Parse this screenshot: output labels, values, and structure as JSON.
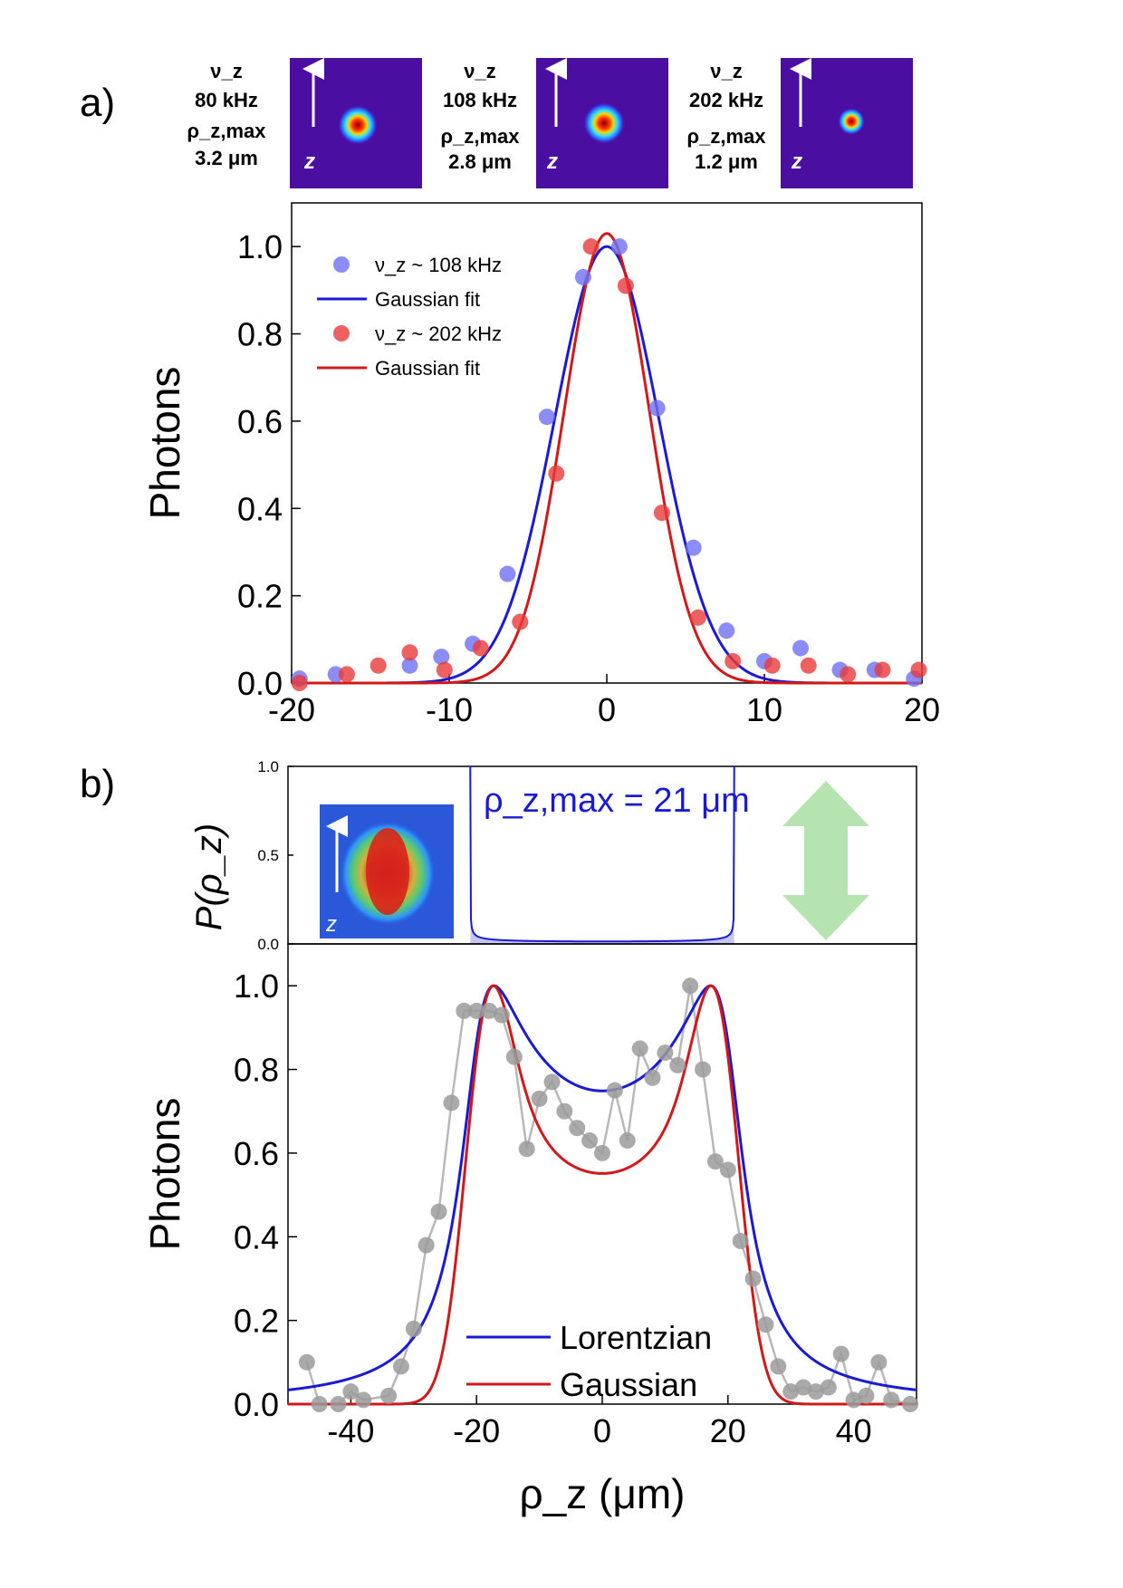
{
  "panel_a": {
    "label": "a)",
    "insets": [
      {
        "nu_label": "ν_z",
        "nu_value": "80 kHz",
        "rho_label": "ρ_z,max",
        "rho_value": "3.2 μm",
        "axis_letter": "z"
      },
      {
        "nu_label": "ν_z",
        "nu_value": "108 kHz",
        "rho_label": "ρ_z,max",
        "rho_value": "2.8 μm",
        "axis_letter": "z"
      },
      {
        "nu_label": "ν_z",
        "nu_value": "202 kHz",
        "rho_label": "ρ_z,max",
        "rho_value": "1.2 μm",
        "axis_letter": "z"
      }
    ]
  },
  "panel_b": {
    "label": "b)",
    "top_ylabel": "P(ρ_z)",
    "rho_annotation": "ρ_z,max = 21 μm",
    "inset_axis_letter": "z"
  },
  "colors": {
    "blue": "#1a1ad6",
    "red": "#d11919",
    "blue_marker": "#6f6ff2",
    "red_marker": "#ea3a3a",
    "gray_marker": "#9b9b9b",
    "gray_line": "#b8b8b8",
    "arrow_green": "#b6e4b0",
    "inset_bg": "#4a0fa0"
  },
  "chart_data": [
    {
      "id": "a",
      "type": "scatter",
      "xlabel": "",
      "ylabel": "Photons",
      "xlim": [
        -20,
        20
      ],
      "ylim": [
        0,
        1.1
      ],
      "xticks": [
        -20,
        -10,
        0,
        10,
        20
      ],
      "yticks": [
        0.0,
        0.2,
        0.4,
        0.6,
        0.8,
        1.0
      ],
      "legend_position": "top-left",
      "series": [
        {
          "name": "ν_z ~ 108 kHz",
          "kind": "points",
          "color": "blue",
          "x": [
            -19.5,
            -17.2,
            -12.5,
            -10.5,
            -8.5,
            -6.3,
            -3.8,
            -1.5,
            0.8,
            3.2,
            5.5,
            7.6,
            10.0,
            12.3,
            14.8,
            17.0,
            19.5
          ],
          "y": [
            0.01,
            0.02,
            0.04,
            0.06,
            0.09,
            0.25,
            0.61,
            0.93,
            1.0,
            0.63,
            0.31,
            0.12,
            0.05,
            0.08,
            0.03,
            0.03,
            0.01
          ]
        },
        {
          "name": "Gaussian fit",
          "kind": "fit",
          "color": "blue",
          "amplitude": 1.0,
          "center": 0.0,
          "sigma": 3.3
        },
        {
          "name": "ν_z ~ 202 kHz",
          "kind": "points",
          "color": "red",
          "x": [
            -19.5,
            -16.5,
            -14.5,
            -12.5,
            -10.3,
            -8.0,
            -5.5,
            -3.2,
            -1.0,
            1.2,
            3.5,
            5.8,
            8.0,
            10.5,
            12.8,
            15.3,
            17.5,
            19.8
          ],
          "y": [
            0.0,
            0.02,
            0.04,
            0.07,
            0.03,
            0.08,
            0.14,
            0.48,
            1.0,
            0.91,
            0.39,
            0.15,
            0.05,
            0.04,
            0.04,
            0.02,
            0.03,
            0.03
          ]
        },
        {
          "name": "Gaussian fit",
          "kind": "fit",
          "color": "red",
          "amplitude": 1.03,
          "center": 0.0,
          "sigma": 2.7
        }
      ]
    },
    {
      "id": "b_top",
      "type": "area",
      "xlabel": "",
      "ylabel": "P(ρ_z)",
      "xlim": [
        -50,
        50
      ],
      "ylim": [
        0,
        1.0
      ],
      "yticks": [
        0.0,
        0.5,
        1.0
      ],
      "series": [
        {
          "name": "P(ρ_z)",
          "kind": "arcsine",
          "color": "blue",
          "rho_max": 21,
          "scale": 0.014
        }
      ]
    },
    {
      "id": "b_bottom",
      "type": "line",
      "xlabel": "ρ_z (μm)",
      "ylabel": "Photons",
      "xlim": [
        -50,
        50
      ],
      "ylim": [
        0,
        1.1
      ],
      "xticks": [
        -40,
        -20,
        0,
        20,
        40
      ],
      "yticks": [
        0.0,
        0.2,
        0.4,
        0.6,
        0.8,
        1.0
      ],
      "legend_position": "bottom-center",
      "series": [
        {
          "name": "Data",
          "kind": "points_line",
          "color": "gray",
          "x": [
            -47,
            -45,
            -42,
            -40,
            -38,
            -34,
            -32,
            -30,
            -28,
            -26,
            -24,
            -22,
            -20,
            -18,
            -16,
            -14,
            -12,
            -10,
            -8,
            -6,
            -4,
            -2,
            0,
            2,
            4,
            6,
            8,
            10,
            12,
            14,
            16,
            18,
            20,
            22,
            24,
            26,
            28,
            30,
            32,
            34,
            36,
            38,
            40,
            42,
            44,
            46,
            49
          ],
          "y": [
            0.1,
            0.0,
            0.0,
            0.03,
            0.01,
            0.02,
            0.09,
            0.18,
            0.38,
            0.46,
            0.72,
            0.94,
            0.94,
            0.94,
            0.93,
            0.83,
            0.61,
            0.73,
            0.77,
            0.7,
            0.66,
            0.63,
            0.6,
            0.75,
            0.63,
            0.85,
            0.78,
            0.84,
            0.81,
            1.0,
            0.8,
            0.58,
            0.56,
            0.39,
            0.3,
            0.19,
            0.09,
            0.03,
            0.04,
            0.03,
            0.04,
            0.12,
            0.01,
            0.02,
            0.1,
            0.01,
            0.0
          ]
        },
        {
          "name": "Lorentzian",
          "kind": "conv_lorentz",
          "color": "blue",
          "rho_max": 20,
          "width": 4.3
        },
        {
          "name": "Gaussian",
          "kind": "conv_gauss",
          "color": "red",
          "rho_max": 20,
          "sigma": 3.3
        }
      ]
    }
  ]
}
